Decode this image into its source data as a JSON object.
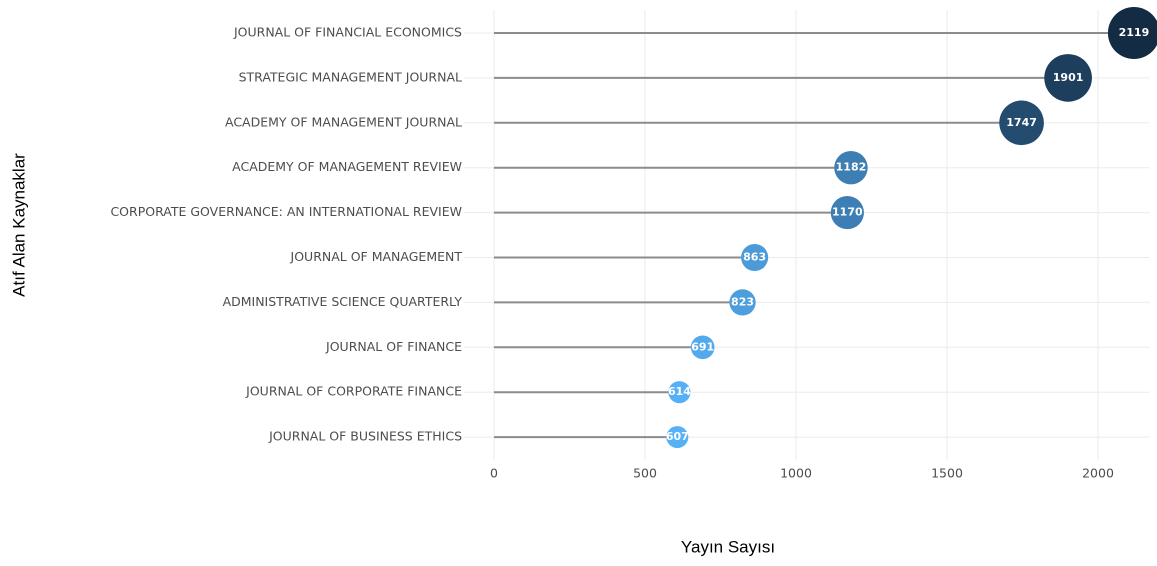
{
  "chart_data": {
    "type": "lollipop",
    "x_label": "Yayın Sayısı",
    "y_label": "Atıf Alan Kaynaklar",
    "categories": [
      "JOURNAL OF FINANCIAL ECONOMICS",
      "STRATEGIC MANAGEMENT JOURNAL",
      "ACADEMY OF MANAGEMENT JOURNAL",
      "ACADEMY OF MANAGEMENT REVIEW",
      "CORPORATE GOVERNANCE: AN INTERNATIONAL REVIEW",
      "JOURNAL OF MANAGEMENT",
      "ADMINISTRATIVE SCIENCE QUARTERLY",
      "JOURNAL OF FINANCE",
      "JOURNAL OF CORPORATE FINANCE",
      "JOURNAL OF BUSINESS ETHICS"
    ],
    "values": [
      2119,
      1901,
      1747,
      1182,
      1170,
      863,
      823,
      691,
      614,
      607
    ],
    "xlim": [
      0,
      2170
    ],
    "xticks": [
      0,
      500,
      1000,
      1500,
      2000
    ],
    "grid": true,
    "stem_color": "#8c8c8c",
    "color_low": "#56b1f7",
    "color_high": "#132b43"
  }
}
